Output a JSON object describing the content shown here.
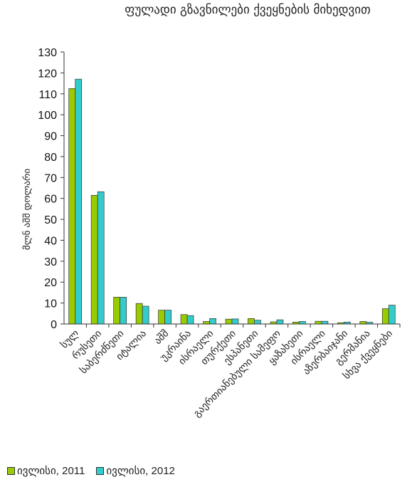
{
  "chart_data": {
    "type": "bar",
    "title": "ფულადი გზავნილები ქვეყნების მიხედვით",
    "ylabel": "მლნ აშშ დოლარი",
    "xlabel": "",
    "ylim": [
      0,
      130
    ],
    "yticks": [
      0,
      10,
      20,
      30,
      40,
      50,
      60,
      70,
      80,
      90,
      100,
      110,
      120,
      130
    ],
    "grid": false,
    "legend_position": "bottom-left",
    "categories": [
      "სულ",
      "რუსეთი",
      "საბერძნეთი",
      "იტალია",
      "აშშ",
      "უკრაინა",
      "ისრაელი",
      "თურქეთი",
      "ესპანეთი",
      "გაერთიანებული სამეფო",
      "ყაზახეთი",
      "ისრაელი",
      "აზერბაიჯანი",
      "გერმანია",
      "სხვა ქვეყნები"
    ],
    "series": [
      {
        "name": "ივლისი, 2011",
        "color": "#99cc00",
        "values": [
          112.5,
          61.5,
          12.8,
          9.8,
          6.6,
          4.5,
          1.2,
          2.3,
          2.6,
          1.0,
          0.9,
          1.3,
          0.6,
          1.2,
          7.3
        ]
      },
      {
        "name": "ივლისი, 2012",
        "color": "#33cccc",
        "values": [
          117.0,
          63.2,
          12.8,
          8.5,
          6.6,
          4.0,
          2.6,
          2.4,
          1.8,
          2.0,
          1.2,
          1.3,
          0.9,
          0.8,
          9.0
        ]
      }
    ]
  }
}
